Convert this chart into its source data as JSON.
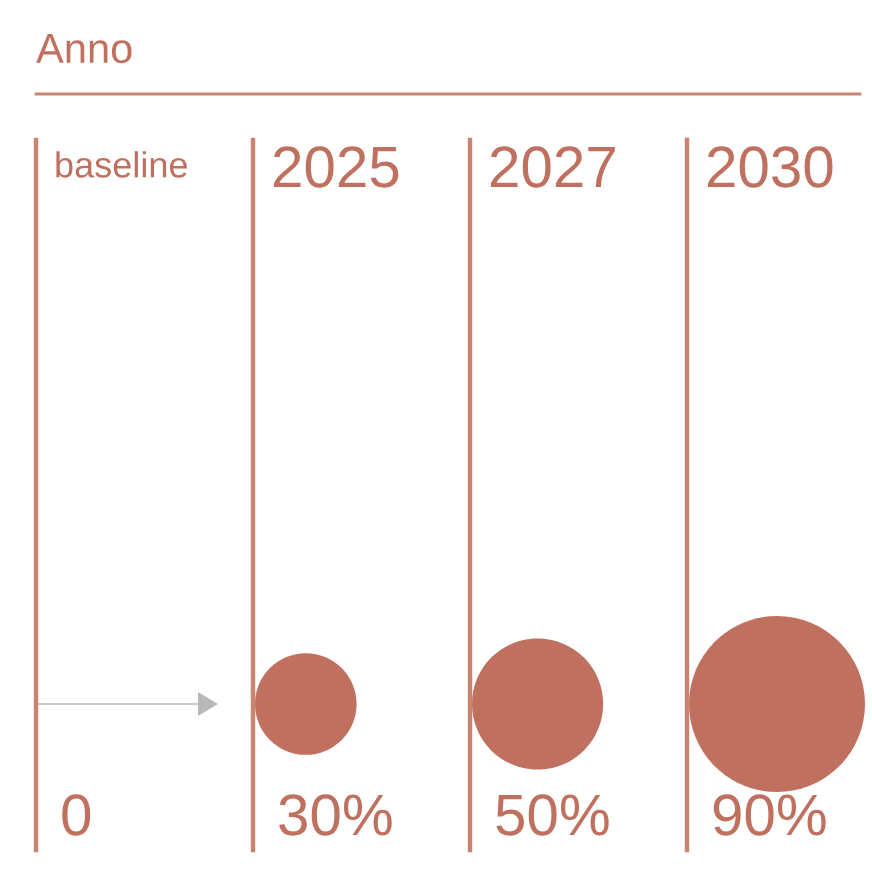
{
  "chart_data": {
    "type": "other",
    "title": "Anno",
    "categories": [
      "baseline",
      "2025",
      "2027",
      "2030"
    ],
    "values": [
      0,
      30,
      50,
      90
    ],
    "value_labels": [
      "0",
      "30%",
      "50%",
      "90%"
    ],
    "color": "#c0705f"
  }
}
